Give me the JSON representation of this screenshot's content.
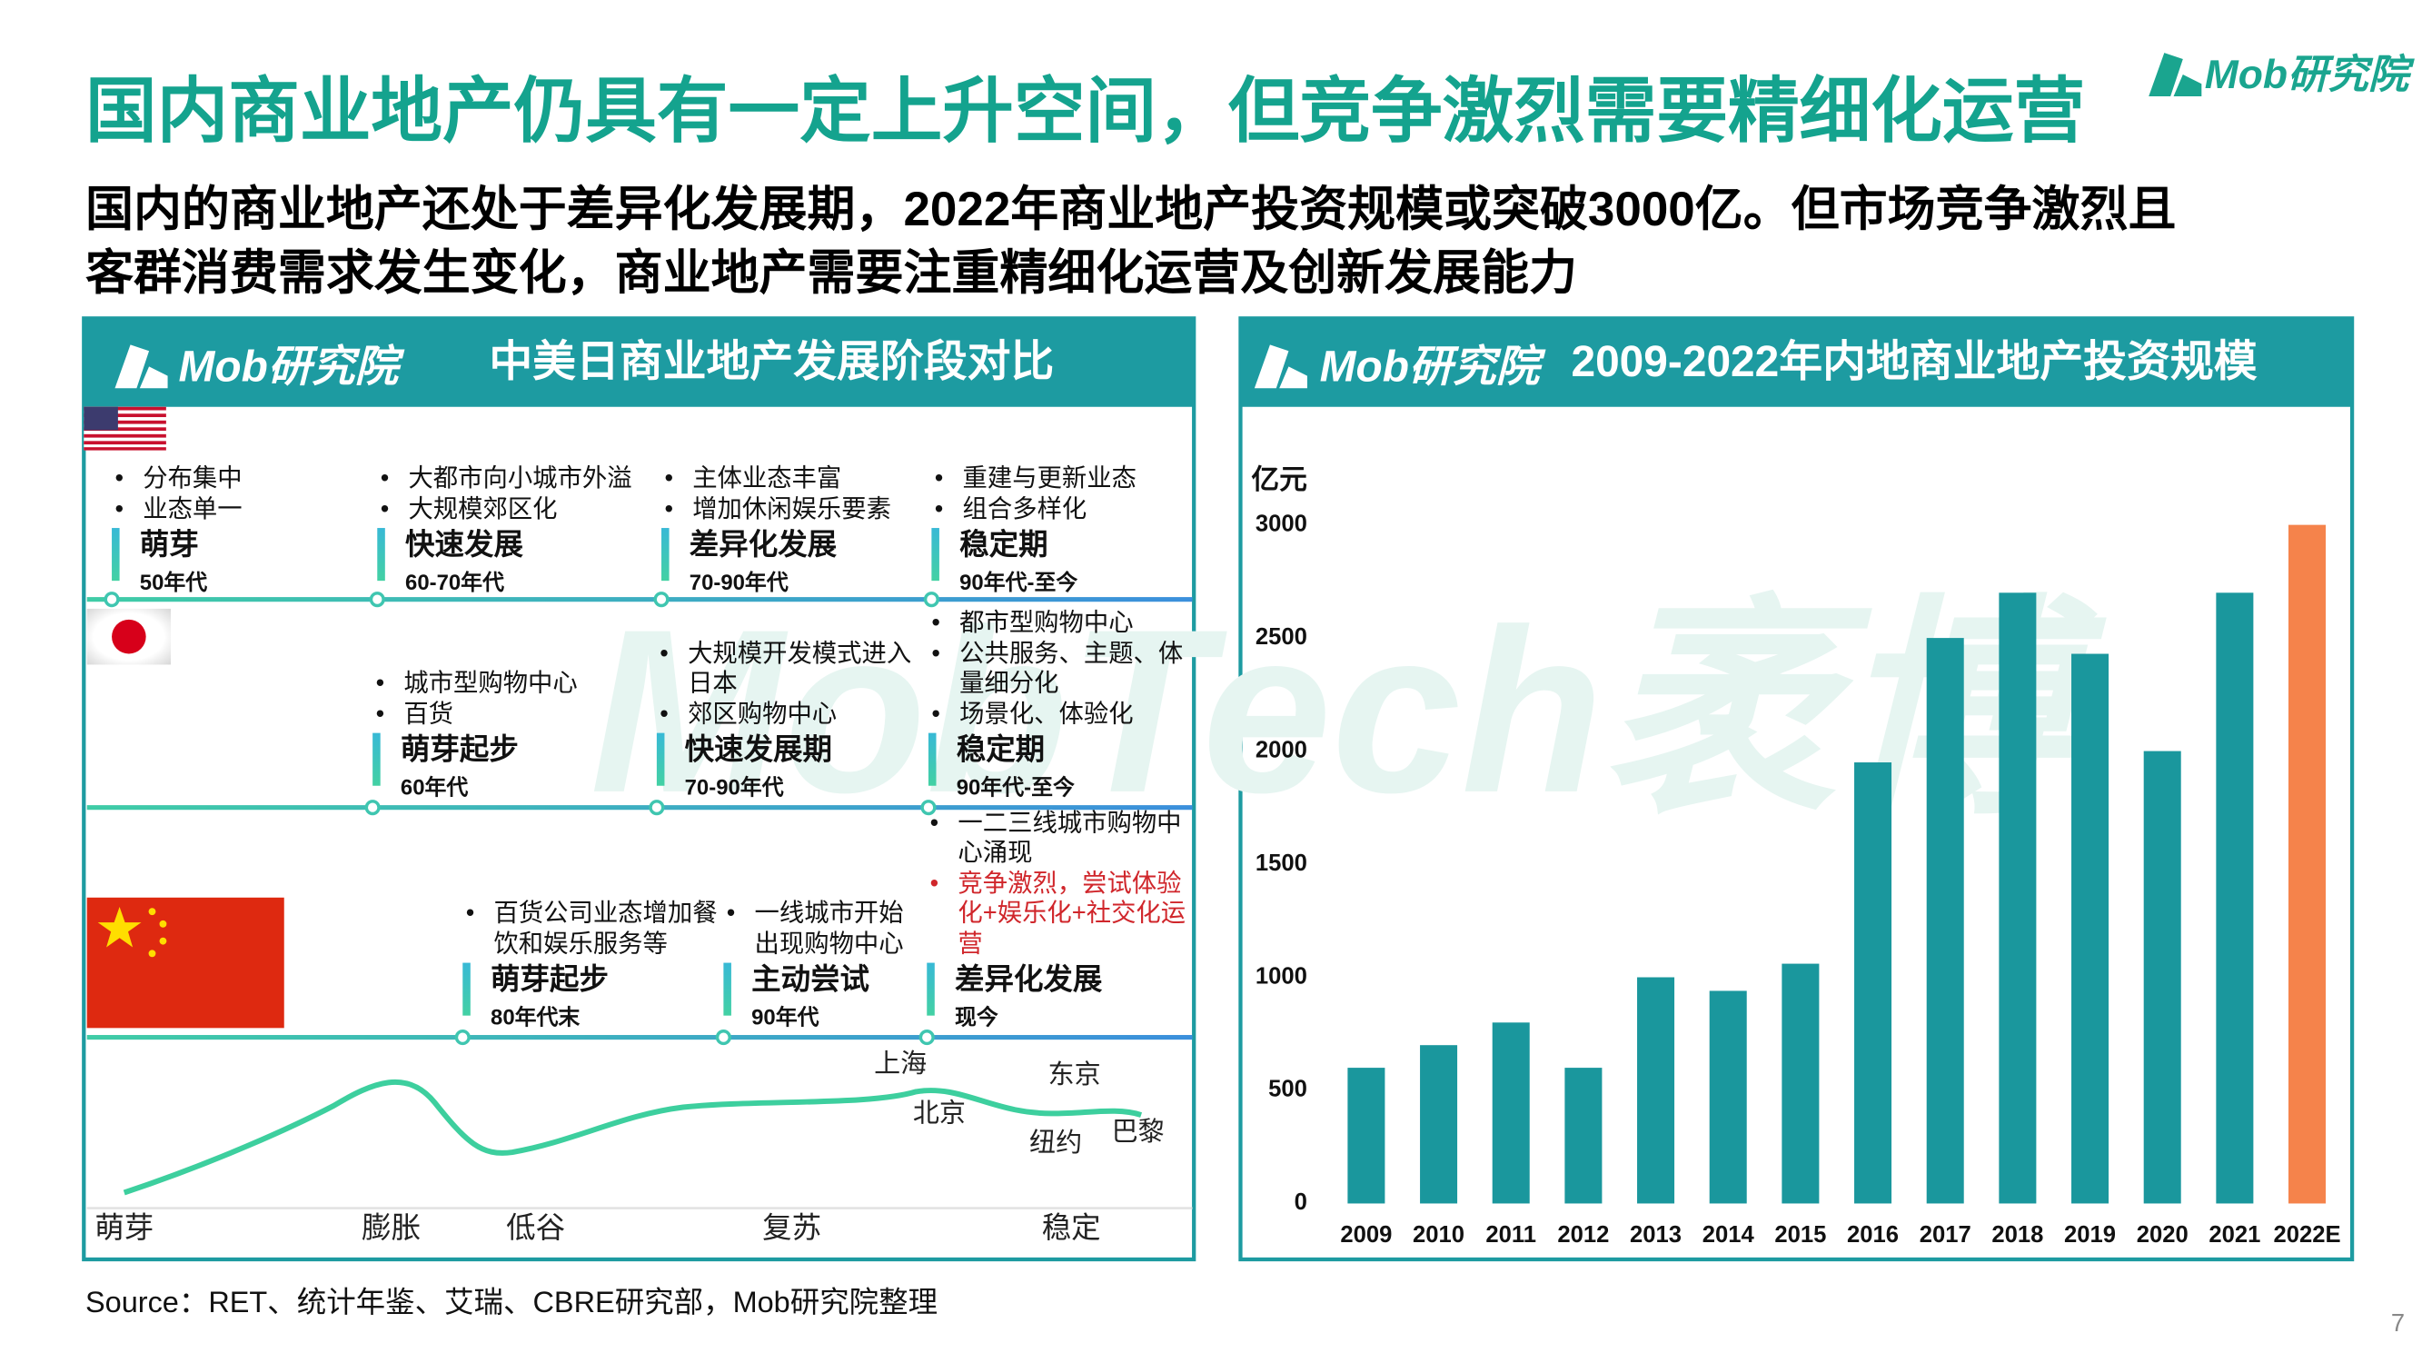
{
  "header": {
    "title": "国内商业地产仍具有一定上升空间，但竞争激烈需要精细化运营",
    "logo": "Mob研究院"
  },
  "subtitle": [
    "国内的商业地产还处于差异化发展期，2022年商业地产投资规模或突破3000亿。但市场竞争激烈且",
    "客群消费需求发生变化，商业地产需要注重精细化运营及创新发展能力"
  ],
  "left_panel": {
    "logo": "Mob研究院",
    "title": "中美日商业地产发展阶段对比",
    "watermark": "MobTech袤博",
    "rows": [
      {
        "stages": [
          {
            "bullets": [
              "分布集中",
              "业态单一"
            ],
            "name": "萌芽",
            "period": "50年代"
          },
          {
            "bullets": [
              "大都市向小城市外溢",
              "大规模郊区化"
            ],
            "name": "快速发展",
            "period": "60-70年代"
          },
          {
            "bullets": [
              "主体业态丰富",
              "增加休闲娱乐要素"
            ],
            "name": "差异化发展",
            "period": "70-90年代"
          },
          {
            "bullets": [
              "重建与更新业态",
              "组合多样化"
            ],
            "name": "稳定期",
            "period": "90年代-至今"
          }
        ]
      },
      {
        "stages": [
          {
            "bullets": [
              "城市型购物中心",
              "百货"
            ],
            "name": "萌芽起步",
            "period": "60年代"
          },
          {
            "bullets": [
              "大规模开发模式进入日本",
              "郊区购物中心"
            ],
            "name": "快速发展期",
            "period": "70-90年代"
          },
          {
            "bullets": [
              "都市型购物中心",
              "公共服务、主题、体量细分化",
              "场景化、体验化"
            ],
            "name": "稳定期",
            "period": "90年代-至今"
          }
        ]
      },
      {
        "stages": [
          {
            "bullets": [
              "百货公司业态增加餐饮和娱乐服务等"
            ],
            "name": "萌芽起步",
            "period": "80年代末"
          },
          {
            "bullets": [
              "一线城市开始出现购物中心"
            ],
            "name": "主动尝试",
            "period": "90年代"
          },
          {
            "bullets": [
              "一二三线城市购物中心涌现"
            ],
            "alert_bullets": [
              "竞争激烈，尝试体验化+娱乐化+社交化运营"
            ],
            "name": "差异化发展",
            "period": "现今"
          }
        ]
      }
    ],
    "curve": {
      "cities": [
        "上海",
        "北京",
        "东京",
        "纽约",
        "巴黎"
      ],
      "phases": [
        "萌芽",
        "膨胀",
        "低谷",
        "复苏",
        "稳定"
      ]
    }
  },
  "chart_data": {
    "type": "bar",
    "title": "2009-2022年内地商业地产投资规模",
    "logo": "Mob研究院",
    "y_label": "亿元",
    "categories": [
      "2009",
      "2010",
      "2011",
      "2012",
      "2013",
      "2014",
      "2015",
      "2016",
      "2017",
      "2018",
      "2019",
      "2020",
      "2021",
      "2022E"
    ],
    "values": [
      600,
      700,
      800,
      600,
      1000,
      940,
      1060,
      1950,
      2500,
      2700,
      2430,
      2000,
      2700,
      3000
    ],
    "colors": [
      "#1a979d",
      "#1a979d",
      "#1a979d",
      "#1a979d",
      "#1a979d",
      "#1a979d",
      "#1a979d",
      "#1a979d",
      "#1a979d",
      "#1a979d",
      "#1a979d",
      "#1a979d",
      "#1a979d",
      "#f5834b"
    ],
    "ylim": [
      0,
      3000
    ],
    "yticks": [
      0,
      500,
      1000,
      1500,
      2000,
      2500,
      3000
    ]
  },
  "source": "Source：RET、统计年鉴、艾瑞、CBRE研究部，Mob研究院整理",
  "page_number": "7"
}
